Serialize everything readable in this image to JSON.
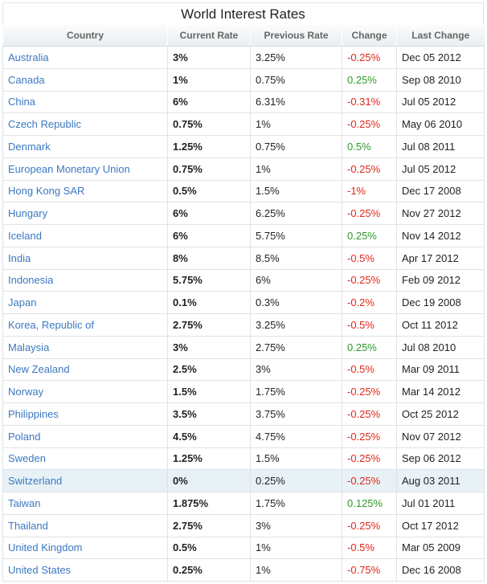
{
  "title": "World Interest Rates",
  "table": {
    "columns": [
      "Country",
      "Current Rate",
      "Previous Rate",
      "Change",
      "Last Change"
    ],
    "rows": [
      [
        "Australia",
        "3%",
        "3.25%",
        "-0.25%",
        "Dec 05 2012"
      ],
      [
        "Canada",
        "1%",
        "0.75%",
        "0.25%",
        "Sep 08 2010"
      ],
      [
        "China",
        "6%",
        "6.31%",
        "-0.31%",
        "Jul 05 2012"
      ],
      [
        "Czech Republic",
        "0.75%",
        "1%",
        "-0.25%",
        "May 06 2010"
      ],
      [
        "Denmark",
        "1.25%",
        "0.75%",
        "0.5%",
        "Jul 08 2011"
      ],
      [
        "European Monetary Union",
        "0.75%",
        "1%",
        "-0.25%",
        "Jul 05 2012"
      ],
      [
        "Hong Kong SAR",
        "0.5%",
        "1.5%",
        "-1%",
        "Dec 17 2008"
      ],
      [
        "Hungary",
        "6%",
        "6.25%",
        "-0.25%",
        "Nov 27 2012"
      ],
      [
        "Iceland",
        "6%",
        "5.75%",
        "0.25%",
        "Nov 14 2012"
      ],
      [
        "India",
        "8%",
        "8.5%",
        "-0.5%",
        "Apr 17 2012"
      ],
      [
        "Indonesia",
        "5.75%",
        "6%",
        "-0.25%",
        "Feb 09 2012"
      ],
      [
        "Japan",
        "0.1%",
        "0.3%",
        "-0.2%",
        "Dec 19 2008"
      ],
      [
        "Korea, Republic of",
        "2.75%",
        "3.25%",
        "-0.5%",
        "Oct 11 2012"
      ],
      [
        "Malaysia",
        "3%",
        "2.75%",
        "0.25%",
        "Jul 08 2010"
      ],
      [
        "New Zealand",
        "2.5%",
        "3%",
        "-0.5%",
        "Mar 09 2011"
      ],
      [
        "Norway",
        "1.5%",
        "1.75%",
        "-0.25%",
        "Mar 14 2012"
      ],
      [
        "Philippines",
        "3.5%",
        "3.75%",
        "-0.25%",
        "Oct 25 2012"
      ],
      [
        "Poland",
        "4.5%",
        "4.75%",
        "-0.25%",
        "Nov 07 2012"
      ],
      [
        "Sweden",
        "1.25%",
        "1.5%",
        "-0.25%",
        "Sep 06 2012"
      ],
      [
        "Switzerland",
        "0%",
        "0.25%",
        "-0.25%",
        "Aug 03 2011"
      ],
      [
        "Taiwan",
        "1.875%",
        "1.75%",
        "0.125%",
        "Jul 01 2011"
      ],
      [
        "Thailand",
        "2.75%",
        "3%",
        "-0.25%",
        "Oct 17 2012"
      ],
      [
        "United Kingdom",
        "0.5%",
        "1%",
        "-0.5%",
        "Mar 05 2009"
      ],
      [
        "United States",
        "0.25%",
        "1%",
        "-0.75%",
        "Dec 16 2008"
      ]
    ]
  }
}
